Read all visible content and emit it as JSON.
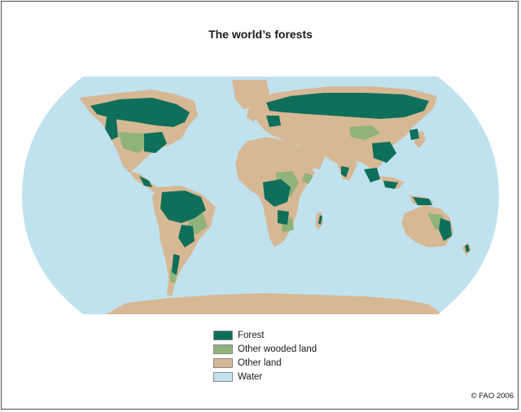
{
  "map": {
    "title": "The world’s forests",
    "credit": "© FAO 2006",
    "colors": {
      "forest": "#0e6f5a",
      "other_wooded_land": "#8fb37a",
      "other_land": "#d7b894",
      "water": "#bfe2ee"
    },
    "legend": [
      {
        "label": "Forest",
        "color": "#0e6f5a"
      },
      {
        "label": "Other wooded land",
        "color": "#8fb37a"
      },
      {
        "label": "Other land",
        "color": "#d7b894"
      },
      {
        "label": "Water",
        "color": "#bfe2ee"
      }
    ]
  }
}
